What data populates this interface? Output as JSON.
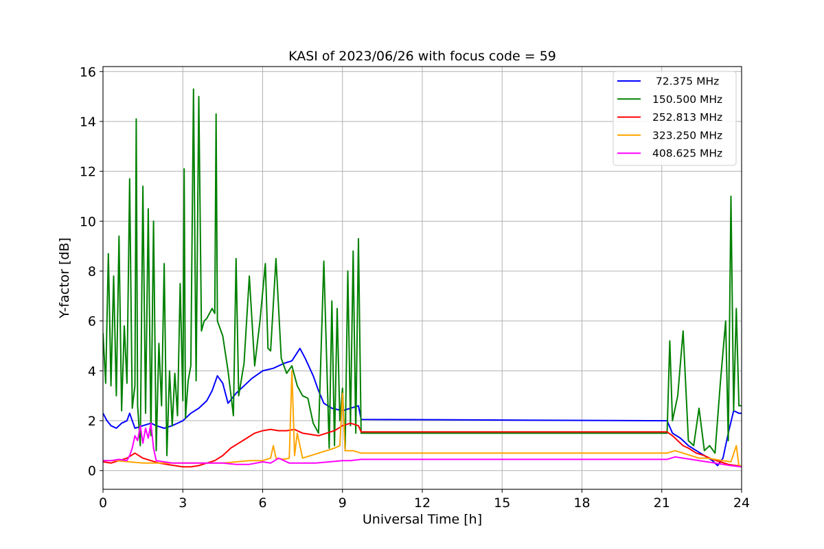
{
  "chart_data": {
    "type": "line",
    "title": "KASI of 2023/06/26 with focus code = 59",
    "xlabel": "Universal Time [h]",
    "ylabel": "Y-factor [dB]",
    "xlim": [
      0,
      24
    ],
    "ylim": [
      -0.75,
      16.2
    ],
    "xticks": [
      0,
      3,
      6,
      9,
      12,
      15,
      18,
      21,
      24
    ],
    "yticks": [
      0,
      2,
      4,
      6,
      8,
      10,
      12,
      14,
      16
    ],
    "grid": true,
    "legend_position": "top-right",
    "series": [
      {
        "name": " 72.375 MHz",
        "color": "#0000ff",
        "x": [
          0,
          0.15,
          0.3,
          0.5,
          0.7,
          0.9,
          1.0,
          1.2,
          1.5,
          1.8,
          2.0,
          2.3,
          2.6,
          3.0,
          3.3,
          3.6,
          3.9,
          4.1,
          4.3,
          4.5,
          4.7,
          5.0,
          5.3,
          5.6,
          6.0,
          6.4,
          6.8,
          7.1,
          7.4,
          7.6,
          7.9,
          8.1,
          8.3,
          8.6,
          9.0,
          9.3,
          9.6,
          9.7,
          21.2,
          21.4,
          21.7,
          22.0,
          22.3,
          22.6,
          22.9,
          23.1,
          23.3,
          23.5,
          23.7,
          23.9,
          24.0
        ],
        "y": [
          2.3,
          2.0,
          1.8,
          1.7,
          1.9,
          2.0,
          2.3,
          1.7,
          1.8,
          1.9,
          1.8,
          1.7,
          1.8,
          2.0,
          2.3,
          2.5,
          2.8,
          3.2,
          3.8,
          3.5,
          2.7,
          3.1,
          3.4,
          3.7,
          4.0,
          4.1,
          4.3,
          4.4,
          4.9,
          4.5,
          3.8,
          3.2,
          2.7,
          2.5,
          2.4,
          2.5,
          2.6,
          2.05,
          2.0,
          1.5,
          1.3,
          1.0,
          0.8,
          0.6,
          0.4,
          0.2,
          0.5,
          1.5,
          2.4,
          2.3,
          2.3
        ]
      },
      {
        "name": "150.500 MHz",
        "color": "#008000",
        "x": [
          0,
          0.1,
          0.2,
          0.3,
          0.4,
          0.5,
          0.6,
          0.7,
          0.8,
          0.9,
          1.0,
          1.1,
          1.2,
          1.25,
          1.3,
          1.4,
          1.5,
          1.6,
          1.7,
          1.8,
          1.9,
          2.0,
          2.1,
          2.2,
          2.3,
          2.4,
          2.5,
          2.6,
          2.7,
          2.8,
          2.9,
          3.0,
          3.05,
          3.1,
          3.2,
          3.3,
          3.4,
          3.5,
          3.6,
          3.7,
          3.8,
          3.9,
          4.0,
          4.1,
          4.2,
          4.25,
          4.3,
          4.5,
          4.7,
          4.9,
          5.0,
          5.1,
          5.3,
          5.5,
          5.7,
          5.9,
          6.1,
          6.2,
          6.3,
          6.5,
          6.7,
          6.9,
          7.1,
          7.3,
          7.5,
          7.7,
          7.9,
          8.1,
          8.3,
          8.5,
          8.6,
          8.7,
          8.8,
          8.9,
          9.0,
          9.1,
          9.2,
          9.3,
          9.4,
          9.5,
          9.6,
          9.7,
          21.2,
          21.3,
          21.4,
          21.6,
          21.8,
          22.0,
          22.2,
          22.4,
          22.6,
          22.8,
          23.0,
          23.2,
          23.4,
          23.5,
          23.6,
          23.7,
          23.8,
          23.9,
          24.0
        ],
        "y": [
          5.5,
          3.5,
          8.7,
          3.4,
          7.8,
          3.0,
          9.4,
          2.4,
          5.8,
          3.5,
          11.7,
          2.5,
          3.4,
          14.1,
          2.6,
          1.0,
          11.4,
          2.3,
          10.5,
          1.4,
          10.0,
          0.8,
          5.1,
          2.6,
          8.3,
          0.6,
          4.0,
          1.8,
          3.9,
          2.2,
          7.5,
          2.8,
          12.1,
          2.1,
          3.6,
          4.2,
          15.3,
          3.6,
          15.0,
          5.6,
          6.0,
          6.1,
          6.3,
          6.5,
          6.3,
          14.3,
          6.0,
          5.4,
          4.0,
          2.2,
          8.5,
          3.0,
          4.3,
          7.8,
          4.2,
          6.0,
          8.3,
          4.9,
          4.8,
          8.5,
          4.5,
          3.9,
          4.2,
          3.4,
          3.0,
          2.9,
          1.9,
          1.5,
          8.4,
          0.9,
          6.8,
          1.0,
          6.5,
          2.0,
          3.3,
          0.8,
          8.0,
          1.8,
          8.8,
          1.5,
          9.3,
          1.5,
          1.5,
          5.2,
          2.0,
          3.0,
          5.6,
          1.2,
          1.0,
          2.5,
          0.8,
          1.0,
          0.7,
          3.5,
          6.0,
          1.2,
          11.0,
          2.4,
          6.5,
          2.6,
          2.6
        ]
      },
      {
        "name": "252.813 MHz",
        "color": "#ff0000",
        "x": [
          0,
          0.3,
          0.6,
          0.9,
          1.2,
          1.5,
          1.8,
          2.1,
          2.4,
          2.7,
          3.0,
          3.3,
          3.6,
          3.9,
          4.2,
          4.5,
          4.8,
          5.1,
          5.4,
          5.7,
          6.0,
          6.3,
          6.6,
          6.9,
          7.2,
          7.5,
          7.8,
          8.1,
          8.4,
          8.7,
          9.0,
          9.3,
          9.6,
          9.7,
          21.2,
          21.4,
          21.6,
          21.8,
          22.0,
          22.3,
          22.6,
          22.9,
          23.2,
          23.5,
          23.8,
          24.0
        ],
        "y": [
          0.35,
          0.3,
          0.4,
          0.5,
          0.7,
          0.5,
          0.4,
          0.3,
          0.25,
          0.2,
          0.15,
          0.15,
          0.2,
          0.3,
          0.4,
          0.6,
          0.9,
          1.1,
          1.3,
          1.5,
          1.6,
          1.65,
          1.6,
          1.6,
          1.65,
          1.5,
          1.45,
          1.4,
          1.5,
          1.6,
          1.8,
          1.9,
          1.8,
          1.55,
          1.55,
          1.4,
          1.2,
          1.0,
          0.9,
          0.7,
          0.6,
          0.45,
          0.35,
          0.25,
          0.2,
          0.2
        ]
      },
      {
        "name": "323.250 MHz",
        "color": "#ffa500",
        "x": [
          0,
          0.5,
          1.0,
          1.5,
          2.0,
          2.5,
          3.0,
          3.5,
          4.0,
          4.5,
          5.0,
          5.5,
          6.0,
          6.3,
          6.4,
          6.5,
          6.8,
          7.0,
          7.1,
          7.2,
          7.3,
          7.5,
          7.8,
          8.1,
          8.4,
          8.7,
          8.9,
          9.0,
          9.1,
          9.4,
          9.7,
          21.2,
          21.5,
          21.8,
          22.1,
          22.4,
          22.7,
          23.0,
          23.3,
          23.6,
          23.8,
          23.9,
          24.0
        ],
        "y": [
          0.4,
          0.4,
          0.35,
          0.3,
          0.3,
          0.3,
          0.3,
          0.3,
          0.3,
          0.3,
          0.35,
          0.4,
          0.4,
          0.5,
          1.0,
          0.5,
          0.45,
          0.5,
          4.0,
          0.6,
          1.5,
          0.5,
          0.6,
          0.7,
          0.8,
          0.9,
          1.0,
          3.1,
          0.8,
          0.8,
          0.7,
          0.7,
          0.8,
          0.7,
          0.6,
          0.5,
          0.5,
          0.45,
          0.4,
          0.35,
          1.0,
          0.2,
          0.2
        ]
      },
      {
        "name": "408.625 MHz",
        "color": "#ff00ff",
        "x": [
          0,
          0.3,
          0.6,
          0.9,
          1.0,
          1.1,
          1.2,
          1.3,
          1.4,
          1.5,
          1.6,
          1.7,
          1.8,
          1.9,
          2.0,
          2.3,
          2.6,
          3.0,
          3.5,
          4.0,
          4.5,
          5.0,
          5.5,
          6.0,
          6.3,
          6.6,
          7.0,
          7.5,
          8.0,
          8.5,
          9.0,
          9.3,
          9.7,
          21.2,
          21.5,
          21.8,
          22.1,
          22.4,
          22.7,
          23.0,
          23.3,
          23.6,
          24.0
        ],
        "y": [
          0.4,
          0.4,
          0.45,
          0.4,
          0.6,
          0.9,
          1.4,
          1.2,
          1.8,
          1.1,
          1.7,
          1.3,
          1.9,
          0.9,
          0.4,
          0.35,
          0.3,
          0.3,
          0.3,
          0.3,
          0.3,
          0.25,
          0.25,
          0.35,
          0.3,
          0.5,
          0.3,
          0.3,
          0.3,
          0.35,
          0.4,
          0.4,
          0.45,
          0.45,
          0.55,
          0.5,
          0.45,
          0.4,
          0.35,
          0.3,
          0.25,
          0.2,
          0.15
        ]
      }
    ]
  }
}
